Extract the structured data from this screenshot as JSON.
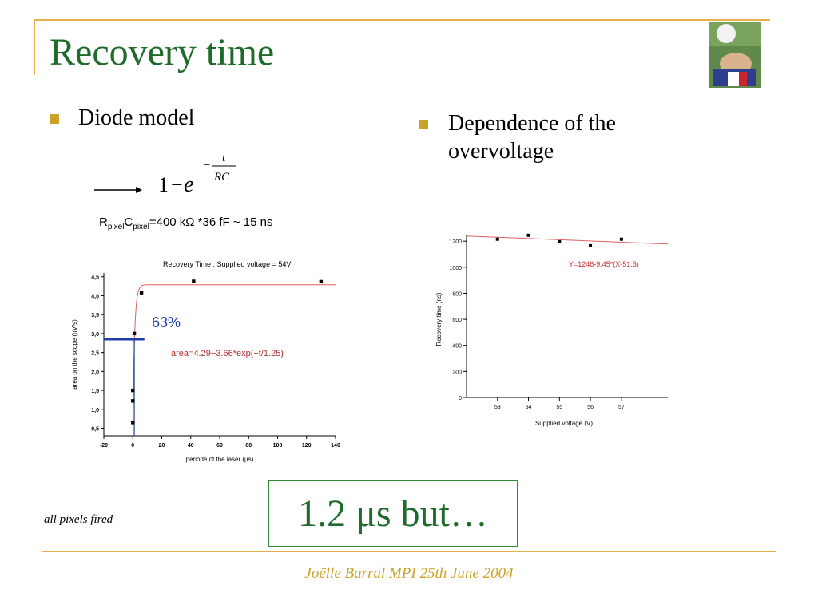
{
  "slide": {
    "title": "Recovery time",
    "bullets": [
      "Diode model",
      "Dependence of the overvoltage"
    ],
    "formula": {
      "base": "1",
      "minus": "−",
      "e": "e",
      "exp_sign": "−",
      "num": "t",
      "den": "RC"
    },
    "rc_text": {
      "r": "R",
      "r_sub": "pixel",
      "c": "C",
      "c_sub": "pixel",
      "rest": "=400 kΩ *36 fF ~ 15 ns"
    },
    "caption": "all pixels fired",
    "highlight": "1.2 μs but…",
    "footer": "Joëlle Barral MPI 25th June 2004"
  },
  "chart_data": [
    {
      "type": "scatter",
      "title": "Recovery Time : Supplied voltage = 54V",
      "xlabel": "periode of the laser (μs)",
      "ylabel": "area on the scope (nV/s)",
      "xlim": [
        -20,
        140
      ],
      "ylim": [
        0.3,
        4.6
      ],
      "xticks": [
        -20,
        0,
        20,
        40,
        60,
        80,
        100,
        120,
        140
      ],
      "yticks": [
        0.5,
        1.0,
        1.5,
        2.0,
        2.5,
        3.0,
        3.5,
        4.0,
        4.5
      ],
      "points": [
        [
          0,
          0.65
        ],
        [
          0,
          1.22
        ],
        [
          0,
          1.5
        ],
        [
          1,
          3.0
        ],
        [
          6,
          4.08
        ],
        [
          42,
          4.38
        ],
        [
          130,
          4.37
        ]
      ],
      "fit": {
        "label": "area=4.29−3.66*exp(−t/1.25)",
        "a": 4.29,
        "b": 3.66,
        "tau": 1.25
      },
      "marker": {
        "label": "63%",
        "y": 2.85
      },
      "grid": false
    },
    {
      "type": "scatter",
      "xlabel": "Supplied voltage (V)",
      "ylabel": "Recovery time (ns)",
      "xlim": [
        52,
        58.5
      ],
      "ylim": [
        0,
        1250
      ],
      "xticks": [
        53,
        54,
        55,
        56,
        57
      ],
      "yticks": [
        0,
        200,
        400,
        600,
        800,
        1000,
        1200
      ],
      "points": [
        [
          53,
          1215
        ],
        [
          54,
          1245
        ],
        [
          55,
          1195
        ],
        [
          56,
          1165
        ],
        [
          57,
          1215
        ]
      ],
      "fit": {
        "label": "Y=1246-9.45*(X-51.3)",
        "intercept": 1246,
        "slope": -9.45,
        "x0": 51.3
      },
      "grid": false
    }
  ]
}
